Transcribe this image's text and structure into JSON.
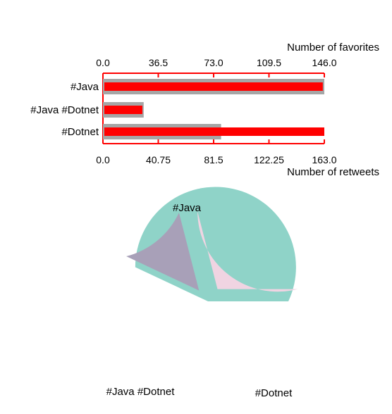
{
  "colors": {
    "favorites_bar": "#ff0000",
    "retweets_bar": "#a6a6a6",
    "top_axis": "#ff0000",
    "bottom_axis": "#ff0000",
    "pie": [
      "#8fd3c8",
      "#a8a0b8",
      "#f0d4e2"
    ]
  },
  "chart_data": [
    {
      "type": "bar",
      "orientation": "horizontal",
      "categories": [
        "#Java",
        "#Java #Dotnet",
        "#Dotnet"
      ],
      "series": [
        {
          "name": "Number of favorites",
          "axis": "top",
          "values": [
            145,
            26,
            146
          ]
        },
        {
          "name": "Number of retweets",
          "axis": "bottom",
          "values": [
            163,
            30,
            87
          ]
        }
      ],
      "top_axis": {
        "label": "Number of favorites",
        "range": [
          0,
          146
        ],
        "ticks": [
          "0.0",
          "36.5",
          "73.0",
          "109.5",
          "146.0"
        ]
      },
      "bottom_axis": {
        "label": "Number of retweets",
        "range": [
          0,
          163
        ],
        "ticks": [
          "0.0",
          "40.75",
          "81.5",
          "122.25",
          "163.0"
        ]
      },
      "grid": false
    },
    {
      "type": "pie",
      "labels": [
        "#Java",
        "#Java #Dotnet",
        "#Dotnet"
      ],
      "values": [
        57,
        14,
        29
      ],
      "exploded": true
    }
  ]
}
